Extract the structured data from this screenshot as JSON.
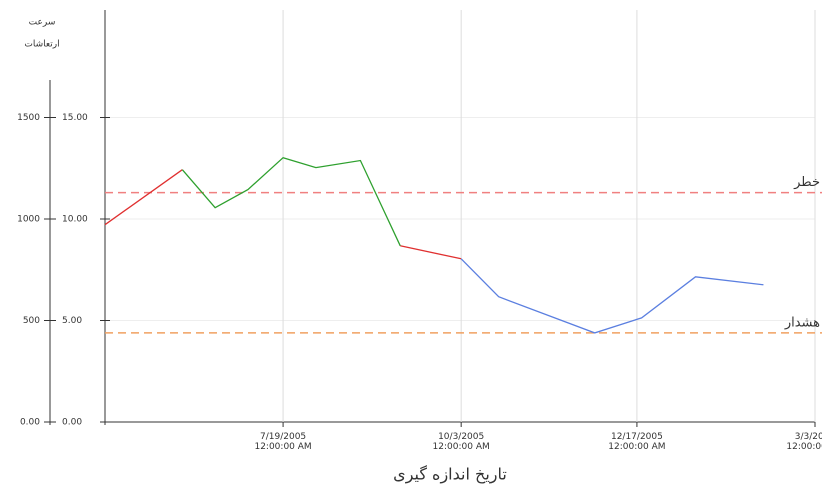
{
  "chart_data": {
    "type": "line",
    "y_label_lines": [
      "سرعت",
      "ارتعاشات"
    ],
    "x_label": "تاریخ اندازه گیری",
    "x": [
      "2005-05-04",
      "2005-06-06",
      "2005-06-20",
      "2005-07-04",
      "2005-07-19",
      "2005-08-02",
      "2005-08-21",
      "2005-09-07",
      "2005-10-03",
      "2005-10-19",
      "2005-11-29",
      "2005-12-19",
      "2006-01-11",
      "2006-02-09"
    ],
    "series": [
      {
        "color": "#e03030",
        "values": [
          972,
          1243,
          null,
          null,
          null,
          null,
          null,
          868,
          804,
          null,
          null,
          null,
          null,
          null
        ]
      },
      {
        "color": "#2ea02e",
        "values": [
          null,
          1243,
          1056,
          1145,
          1302,
          1253,
          1288,
          868,
          null,
          null,
          null,
          null,
          null,
          null
        ]
      },
      {
        "color": "#5b7fe0",
        "values": [
          null,
          null,
          null,
          null,
          null,
          null,
          null,
          null,
          804,
          617,
          439,
          513,
          715,
          676
        ]
      }
    ],
    "xlim": [
      "2005-05-04",
      "2006-03-03"
    ],
    "xticks": [
      {
        "value": "2005-07-19",
        "label": "7/19/2005 12:00:00 AM"
      },
      {
        "value": "2005-10-03",
        "label": "10/3/2005 12:00:00 AM"
      },
      {
        "value": "2005-12-17",
        "label": "12/17/2005 12:00:00 AM"
      },
      {
        "value": "2006-03-03",
        "label": "3/3/2006 12:00:00 AM"
      }
    ],
    "ylim": [
      0,
      2000
    ],
    "yticks": [
      {
        "value": 0,
        "label": "0.00"
      },
      500,
      1000,
      1500
    ],
    "y2lim": [
      0,
      20
    ],
    "y2ticks": [
      {
        "value": 0,
        "label": "0.00"
      },
      {
        "value": 5,
        "label": "5.00"
      },
      {
        "value": 10,
        "label": "10.00"
      },
      {
        "value": 15,
        "label": "15.00"
      }
    ],
    "thresholds": [
      {
        "label": "خطر",
        "value": 1130,
        "color": "#f08080"
      },
      {
        "label": "هشدار",
        "value": 439,
        "color": "#f0a060"
      }
    ],
    "grid": true
  }
}
